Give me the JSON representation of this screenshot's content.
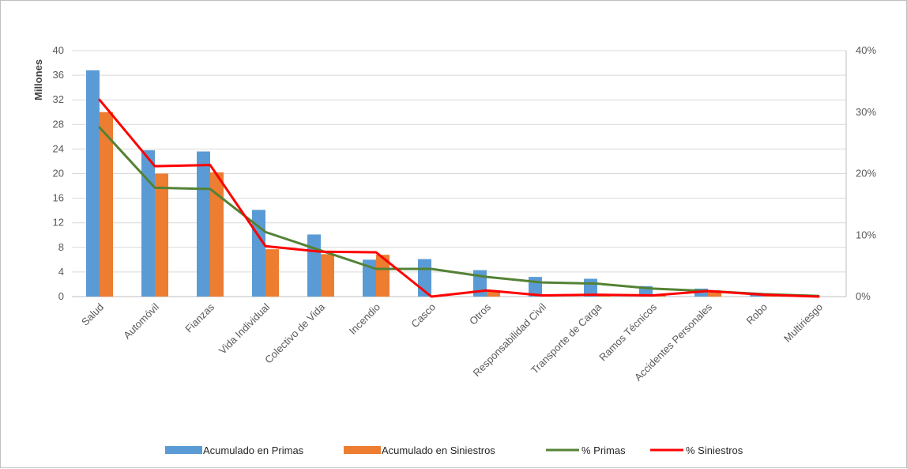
{
  "chart_data": {
    "type": "bar",
    "categories": [
      "Salud",
      "Automóvil",
      "Fianzas",
      "Vida Individual",
      "Colectivo de Vida",
      "Incendio",
      "Casco",
      "Otros",
      "Responsabilidad Civil",
      "Transporte de Carga",
      "Ramos Técnicos",
      "Accidentes Personales",
      "Robo",
      "Multiriesgo"
    ],
    "series": [
      {
        "name": "Acumulado en Primas",
        "kind": "bar",
        "axis": "left",
        "color": "#5b9bd5",
        "values": [
          36.8,
          23.8,
          23.6,
          14.1,
          10.1,
          6.0,
          6.1,
          4.3,
          3.2,
          2.9,
          1.7,
          1.3,
          0.5,
          0.1
        ]
      },
      {
        "name": "Acumulado en Siniestros",
        "kind": "bar",
        "axis": "left",
        "color": "#ed7d31",
        "values": [
          30.0,
          20.0,
          20.2,
          7.7,
          6.9,
          6.8,
          0.0,
          1.0,
          0.3,
          0.4,
          0.3,
          1.0,
          0.3,
          0.0
        ]
      },
      {
        "name": "% Primas",
        "kind": "line",
        "axis": "right",
        "color": "#548235",
        "values": [
          27.5,
          17.7,
          17.5,
          10.5,
          7.5,
          4.5,
          4.5,
          3.2,
          2.3,
          2.1,
          1.3,
          0.9,
          0.4,
          0.1
        ]
      },
      {
        "name": "% Siniestros",
        "kind": "line",
        "axis": "right",
        "color": "#ff0000",
        "values": [
          32.0,
          21.2,
          21.4,
          8.2,
          7.3,
          7.2,
          0.0,
          1.0,
          0.2,
          0.3,
          0.2,
          0.9,
          0.3,
          0.0
        ]
      }
    ],
    "ylabel": "Millones",
    "ylim": [
      0,
      40
    ],
    "yticks": [
      "0",
      "4",
      "8",
      "12",
      "16",
      "20",
      "24",
      "28",
      "32",
      "36",
      "40"
    ],
    "y2lim": [
      0,
      40
    ],
    "y2ticks": [
      "0%",
      "10%",
      "20%",
      "30%",
      "40%"
    ],
    "grid": true,
    "legend_position": "bottom"
  }
}
